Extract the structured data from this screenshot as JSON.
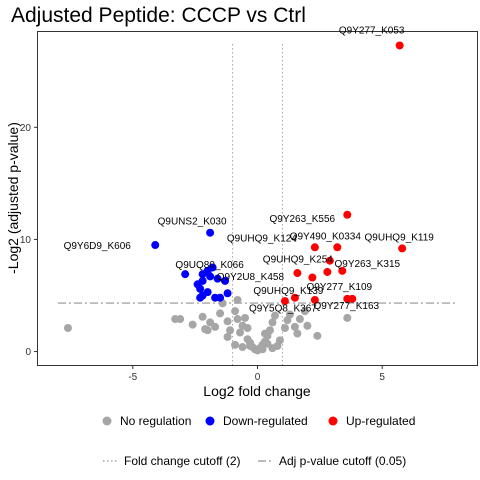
{
  "chart_data": {
    "type": "scatter",
    "title": "Adjusted Peptide: CCCP vs Ctrl",
    "xlabel": "Log2 fold change",
    "ylabel": "-Log2 (adjusted p-value)",
    "xlim": [
      -8.8,
      8.8
    ],
    "ylim": [
      -1.2,
      28.5
    ],
    "x_ticks": [
      -5,
      0,
      5
    ],
    "y_ticks": [
      0,
      10,
      20
    ],
    "grid": false,
    "legend_position": "bottom",
    "fold_change_cutoff": [
      -1,
      1
    ],
    "pvalue_cutoff_y": 4.32,
    "colors": {
      "no_regulation": "#a6a6a6",
      "down_regulated": "#0000ff",
      "up_regulated": "#ff0000",
      "cutoff_line": "#a6a6a6"
    },
    "legend": {
      "groups": [
        {
          "label": "No regulation",
          "color": "#a6a6a6"
        },
        {
          "label": "Down-regulated",
          "color": "#0000ff"
        },
        {
          "label": "Up-regulated",
          "color": "#ff0000"
        }
      ],
      "lines": [
        {
          "label": "Fold change cutoff (2)",
          "style": "dotted"
        },
        {
          "label": "Adj p-value cutoff (0.05)",
          "style": "dashdot"
        }
      ]
    },
    "series": [
      {
        "name": "No regulation",
        "color": "#a6a6a6",
        "points": [
          [
            -7.6,
            2.1
          ],
          [
            -3.3,
            2.9
          ],
          [
            -3.1,
            2.9
          ],
          [
            -2.6,
            2.4
          ],
          [
            -2.2,
            3.1
          ],
          [
            -2.1,
            2.0
          ],
          [
            -2.0,
            1.9
          ],
          [
            -1.9,
            2.6
          ],
          [
            -1.7,
            2.2
          ],
          [
            -1.5,
            3.4
          ],
          [
            -1.4,
            4.3
          ],
          [
            -1.2,
            2.7
          ],
          [
            -1.1,
            1.9
          ],
          [
            -0.9,
            3.6
          ],
          [
            -0.8,
            4.6
          ],
          [
            -0.7,
            1.7
          ],
          [
            -0.6,
            2.3
          ],
          [
            -0.5,
            3.0
          ],
          [
            -0.4,
            1.1
          ],
          [
            -0.3,
            0.8
          ],
          [
            -0.2,
            0.4
          ],
          [
            -0.1,
            0.2
          ],
          [
            0.0,
            0.1
          ],
          [
            0.1,
            0.3
          ],
          [
            0.2,
            0.6
          ],
          [
            0.3,
            0.9
          ],
          [
            0.4,
            1.4
          ],
          [
            0.5,
            1.9
          ],
          [
            0.6,
            2.6
          ],
          [
            0.7,
            3.2
          ],
          [
            0.8,
            0.5
          ],
          [
            0.9,
            1.0
          ],
          [
            1.1,
            2.1
          ],
          [
            1.2,
            2.8
          ],
          [
            1.3,
            3.3
          ],
          [
            1.5,
            2.2
          ],
          [
            1.6,
            1.6
          ],
          [
            1.7,
            2.9
          ],
          [
            1.9,
            3.6
          ],
          [
            2.0,
            2.3
          ],
          [
            2.4,
            1.4
          ],
          [
            3.6,
            3.0
          ],
          [
            -0.9,
            0.6
          ],
          [
            -0.6,
            0.4
          ],
          [
            -0.3,
            0.5
          ],
          [
            0.2,
            0.2
          ],
          [
            0.4,
            0.7
          ],
          [
            -1.2,
            1.3
          ],
          [
            -0.4,
            2.1
          ],
          [
            0.3,
            1.6
          ],
          [
            -0.8,
            2.9
          ],
          [
            0.6,
            0.3
          ]
        ]
      },
      {
        "name": "Down-regulated",
        "color": "#0000ff",
        "points": [
          [
            -4.1,
            9.5
          ],
          [
            -1.9,
            10.6
          ],
          [
            -2.9,
            6.9
          ],
          [
            -2.2,
            6.9
          ],
          [
            -2.0,
            7.2
          ],
          [
            -1.8,
            7.5
          ],
          [
            -2.4,
            6.0
          ],
          [
            -2.3,
            5.6
          ],
          [
            -2.2,
            5.0
          ],
          [
            -2.3,
            4.8
          ],
          [
            -1.7,
            4.8
          ],
          [
            -1.5,
            4.8
          ],
          [
            -1.2,
            5.2
          ],
          [
            -2.2,
            6.3
          ],
          [
            -1.9,
            6.7
          ],
          [
            -1.6,
            6.5
          ],
          [
            -1.3,
            6.3
          ],
          [
            -2.0,
            5.3
          ]
        ]
      },
      {
        "name": "Up-regulated",
        "color": "#ff0000",
        "points": [
          [
            5.7,
            27.3
          ],
          [
            3.6,
            12.2
          ],
          [
            5.8,
            9.2
          ],
          [
            3.2,
            9.3
          ],
          [
            2.3,
            9.3
          ],
          [
            2.9,
            8.1
          ],
          [
            3.4,
            7.2
          ],
          [
            2.8,
            7.1
          ],
          [
            1.6,
            7.0
          ],
          [
            1.1,
            4.5
          ],
          [
            1.5,
            4.8
          ],
          [
            2.3,
            4.6
          ],
          [
            3.6,
            4.7
          ],
          [
            3.8,
            4.7
          ],
          [
            2.2,
            6.6
          ]
        ]
      }
    ],
    "annotations": [
      {
        "text": "Q9Y277_K053",
        "x": 5.7,
        "y": 27.3
      },
      {
        "text": "Q9Y263_K556",
        "x": 3.6,
        "y": 12.2
      },
      {
        "text": "Q9UNS2_K030",
        "x": -1.9,
        "y": 10.6
      },
      {
        "text": "Q9UHQ9_K119",
        "x": 5.8,
        "y": 9.2
      },
      {
        "text": "Q9Y490_K0334",
        "x": 3.2,
        "y": 9.3
      },
      {
        "text": "Q9UHQ9_K124",
        "x": 2.3,
        "y": 9.3
      },
      {
        "text": "Q9Y6D9_K606",
        "x": -4.1,
        "y": 9.5
      },
      {
        "text": "Q9UQ80_K066",
        "x": -2.2,
        "y": 6.9
      },
      {
        "text": "Q9UHQ9_K254",
        "x": 2.9,
        "y": 8.1
      },
      {
        "text": "Q9Y263_K315",
        "x": 3.4,
        "y": 7.2
      },
      {
        "text": "Q9Y2U8_K458",
        "x": 1.6,
        "y": 7.0
      },
      {
        "text": "Q9UHQ9_K139",
        "x": 2.8,
        "y": 7.1
      },
      {
        "text": "Q9Y277_K109",
        "x": 3.6,
        "y": 4.7
      },
      {
        "text": "Q9Y5Q8_K367",
        "x": 1.5,
        "y": 4.8
      },
      {
        "text": "Q9Y277_K163",
        "x": 3.8,
        "y": 4.7
      }
    ]
  }
}
